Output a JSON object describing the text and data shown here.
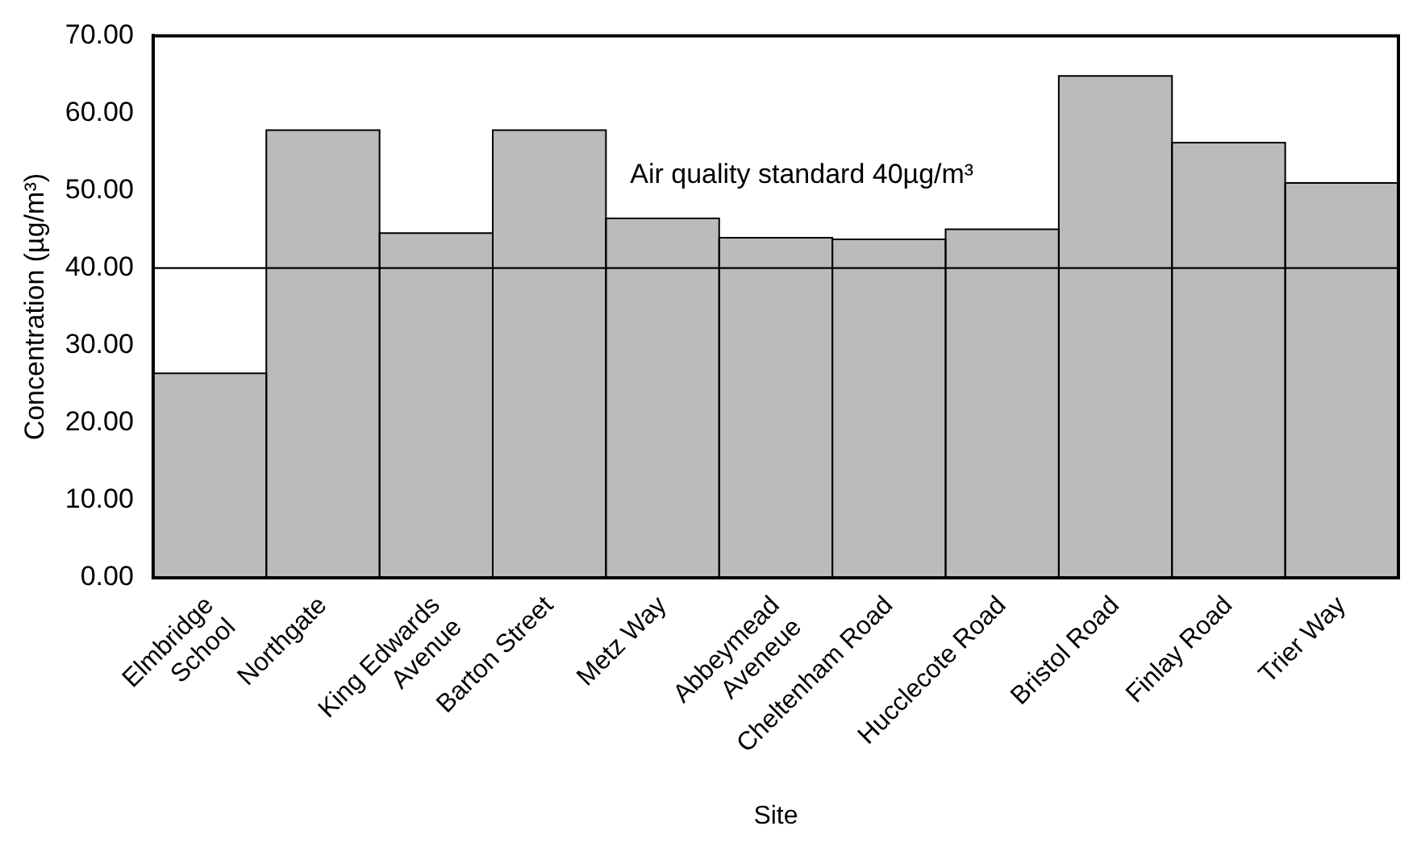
{
  "chart_data": {
    "type": "bar",
    "xlabel": "Site",
    "ylabel": "Concentration (µg/m³)",
    "categories": [
      "Elmbridge\nSchool",
      "Northgate",
      "King Edwards\nAvenue",
      "Barton Street",
      "Metz Way",
      "Abbeymead\nAveneue",
      "Cheltenham Road",
      "Hucclecote Road",
      "Bristol Road",
      "Finlay Road",
      "Trier Way"
    ],
    "values": [
      26.3,
      57.7,
      44.4,
      57.7,
      46.3,
      43.8,
      43.6,
      44.9,
      64.7,
      56.1,
      50.9
    ],
    "color": "#bbbbbb",
    "ylim": [
      0,
      70
    ],
    "yticks": [
      {
        "value": 0,
        "label": "0.00"
      },
      {
        "value": 10,
        "label": "10.00"
      },
      {
        "value": 20,
        "label": "20.00"
      },
      {
        "value": 30,
        "label": "30.00"
      },
      {
        "value": 40,
        "label": "40.00"
      },
      {
        "value": 50,
        "label": "50.00"
      },
      {
        "value": 60,
        "label": "60.00"
      },
      {
        "value": 70,
        "label": "70.00"
      }
    ],
    "ref_lines": [
      {
        "axis": "y",
        "value": 40,
        "label": "Air quality standard 40µg/m³",
        "color": "#000000"
      }
    ],
    "grid": false,
    "legend": false
  }
}
